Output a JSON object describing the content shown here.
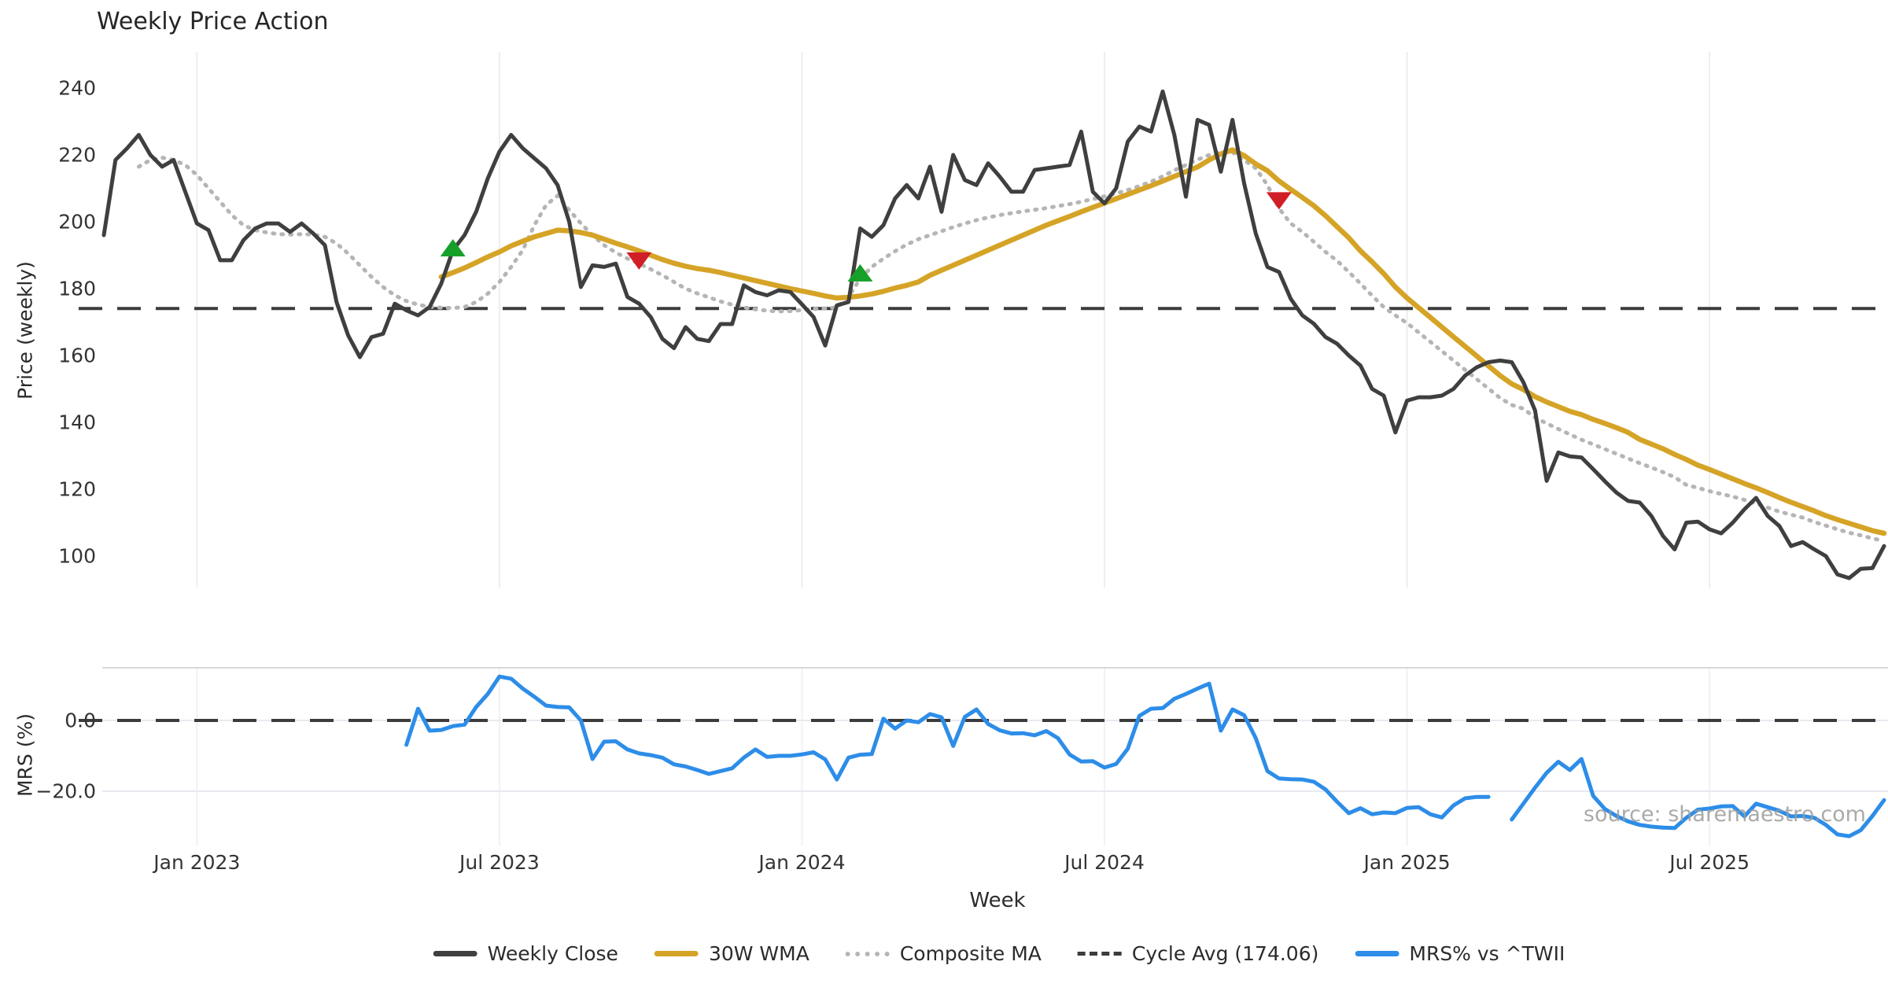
{
  "chart": {
    "title": "Weekly Price Action",
    "watermark": "source: sharemaestro.com",
    "xlabel": "Week",
    "top_panel": {
      "ylabel": "Price (weekly)",
      "yticks": [
        240,
        220,
        200,
        180,
        160,
        140,
        120,
        100
      ],
      "ylim": [
        90.5,
        245.5
      ]
    },
    "bottom_panel": {
      "ylabel": "MRS (%)",
      "yticks": [
        {
          "v": 0,
          "label": "0.0"
        },
        {
          "v": -20,
          "label": "−20.0"
        }
      ],
      "ylim": [
        -35.5,
        15.0
      ]
    },
    "xticks": [
      {
        "week": 8,
        "label": "Jan 2023"
      },
      {
        "week": 34,
        "label": "Jul 2023"
      },
      {
        "week": 60,
        "label": "Jan 2024"
      },
      {
        "week": 86,
        "label": "Jul 2024"
      },
      {
        "week": 112,
        "label": "Jan 2025"
      },
      {
        "week": 138,
        "label": "Jul 2025"
      }
    ],
    "legend": {
      "items": [
        {
          "label": "Weekly Close",
          "color": "#3f3f3f",
          "style": "solid"
        },
        {
          "label": "30W WMA",
          "color": "#d5a326",
          "style": "solid"
        },
        {
          "label": "Composite MA",
          "color": "#b5b5b5",
          "style": "dotted"
        },
        {
          "label": "Cycle Avg (174.06)",
          "color": "#3c3c3c",
          "style": "dashed"
        },
        {
          "label": "MRS% vs ^TWII",
          "color": "#2d8de8",
          "style": "solid"
        }
      ]
    },
    "colors": {
      "grid": "#ededf2",
      "panel_border": "#d8d8dc",
      "close": "#3f3f3f",
      "wma": "#d5a326",
      "composite": "#b5b5b5",
      "cycle": "#3c3c3c",
      "mrs": "#2d8de8",
      "buy": "#16a02a",
      "sell": "#d01f26"
    }
  },
  "chart_data": {
    "type": "line",
    "x_unit": "week_index",
    "n_weeks": 154,
    "x_tick_weeks": [
      8,
      34,
      60,
      86,
      112,
      138
    ],
    "x_tick_labels": [
      "Jan 2023",
      "Jul 2023",
      "Jan 2024",
      "Jul 2024",
      "Jan 2025",
      "Jul 2025"
    ],
    "cycle_avg": 174.06,
    "series": [
      {
        "name": "Weekly Close",
        "panel": "top",
        "values": [
          196,
          218.5,
          222,
          226,
          220,
          216.5,
          218.5,
          209,
          199.5,
          197.5,
          188.5,
          188.5,
          194.5,
          198,
          199.5,
          199.5,
          197,
          199.5,
          196.5,
          193,
          176,
          166,
          159.5,
          165.5,
          166.5,
          175.5,
          173.5,
          172,
          174.5,
          181.5,
          191.5,
          196,
          203,
          213,
          221,
          226,
          222,
          219,
          216,
          211,
          200,
          180.5,
          187,
          186.5,
          187.5,
          177.5,
          175.5,
          171.5,
          165,
          162.2,
          168.5,
          165,
          164.3,
          169.4,
          169.4,
          181,
          179,
          178,
          179.5,
          179,
          175.3,
          171.5,
          163,
          175,
          176,
          198,
          195.5,
          199,
          207,
          211,
          207,
          216.5,
          203,
          220,
          212.5,
          211,
          217.5,
          213.5,
          209,
          209,
          215.5,
          216,
          216.5,
          217,
          227,
          209,
          205.5,
          210,
          224,
          228.5,
          227,
          239,
          226,
          207.5,
          230.5,
          229,
          215,
          230.5,
          211.5,
          196.5,
          186.5,
          185,
          177,
          172,
          169.5,
          165.5,
          163.5,
          160,
          157,
          150,
          148,
          137,
          146.5,
          147.5,
          147.5,
          148,
          150,
          154,
          156.5,
          158,
          158.5,
          158,
          152,
          143.6,
          122.5,
          131,
          129.8,
          129.5,
          126,
          122.4,
          119,
          116.5,
          116,
          112,
          106,
          102,
          110,
          110.3,
          108,
          106.8,
          110,
          114,
          117.4,
          112,
          109,
          103,
          104.2,
          102,
          100,
          94.5,
          93.4,
          96.2,
          96.4,
          103
        ]
      },
      {
        "name": "30W WMA",
        "panel": "top",
        "values": [
          null,
          null,
          null,
          null,
          null,
          null,
          null,
          null,
          null,
          null,
          null,
          null,
          null,
          null,
          null,
          null,
          null,
          null,
          null,
          null,
          null,
          null,
          null,
          null,
          null,
          null,
          null,
          null,
          null,
          183.5,
          184.8,
          186.2,
          187.8,
          189.5,
          191,
          192.8,
          194.2,
          195.5,
          196.5,
          197.5,
          197.3,
          196.8,
          196,
          194.8,
          193.6,
          192.5,
          191.3,
          190,
          188.7,
          187.6,
          186.7,
          186,
          185.5,
          184.8,
          184,
          183.2,
          182.4,
          181.6,
          180.8,
          180,
          179.3,
          178.6,
          177.8,
          177.2,
          177.4,
          177.8,
          178.4,
          179.2,
          180.2,
          181,
          182,
          184,
          185.5,
          187,
          188.5,
          190,
          191.5,
          193,
          194.5,
          196,
          197.5,
          199,
          200.3,
          201.6,
          203,
          204.3,
          205.6,
          206.9,
          208.2,
          209.5,
          210.8,
          212.2,
          213.6,
          215,
          216.4,
          218.5,
          220.3,
          221.5,
          219.8,
          217.3,
          215.3,
          212.2,
          209.7,
          207.3,
          204.8,
          201.8,
          198.5,
          195.2,
          191.3,
          188,
          184.5,
          180.5,
          177.2,
          174.3,
          171.4,
          168.5,
          165.6,
          162.7,
          159.8,
          156.9,
          154,
          151.5,
          149.8,
          147.7,
          146.1,
          144.7,
          143.3,
          142.3,
          140.9,
          139.7,
          138.4,
          137,
          134.9,
          133.5,
          132.1,
          130.4,
          128.9,
          127.2,
          125.9,
          124.5,
          123.1,
          121.7,
          120.4,
          119,
          117.5,
          116.1,
          114.8,
          113.5,
          112.1,
          110.9,
          109.8,
          108.7,
          107.6,
          106.8
        ]
      },
      {
        "name": "Composite MA",
        "panel": "top",
        "values": [
          null,
          null,
          null,
          216.5,
          218.5,
          219.2,
          218.5,
          217,
          214,
          210,
          206,
          202,
          199,
          197.5,
          196.8,
          196.3,
          196.2,
          196.3,
          196.2,
          195.5,
          193.5,
          190.5,
          187,
          183.5,
          180.5,
          178,
          176.3,
          175.2,
          174.6,
          174.3,
          174.2,
          174.5,
          176,
          178.5,
          182,
          186.5,
          191.5,
          199,
          205,
          207.8,
          203.5,
          199.5,
          196,
          193,
          190.8,
          189,
          187.5,
          185.8,
          184,
          182,
          180,
          178.6,
          177.4,
          176.2,
          175.2,
          174.4,
          173.8,
          173.4,
          173.2,
          173.3,
          173.6,
          173.9,
          174.1,
          174.4,
          177.5,
          183,
          186.5,
          189,
          191.2,
          193.2,
          194.8,
          196,
          197.2,
          198.4,
          199.5,
          200.5,
          201.3,
          202,
          202.6,
          203.1,
          203.6,
          204.1,
          204.7,
          205.3,
          206,
          206.8,
          207.6,
          208.5,
          209.5,
          210.7,
          212,
          213.6,
          215.4,
          217,
          218.6,
          220,
          221,
          220.8,
          218.5,
          216,
          211,
          204,
          199.5,
          197,
          194,
          191,
          188.3,
          185,
          181.5,
          177.9,
          174.5,
          172,
          169.7,
          166.9,
          164.1,
          161.3,
          158.5,
          155.7,
          152.9,
          150.1,
          147.3,
          145.2,
          144.1,
          141.4,
          139.7,
          138,
          136.4,
          134.8,
          133.4,
          132,
          130.6,
          129.2,
          127.8,
          126.5,
          125.1,
          123.6,
          121.3,
          120.4,
          119.4,
          118.6,
          117.8,
          116.8,
          115.7,
          114.5,
          113.3,
          112.4,
          111.5,
          110.2,
          109.1,
          108,
          107,
          106.2,
          105.3,
          104.5
        ]
      },
      {
        "name": "Cycle Avg (174.06)",
        "panel": "top",
        "constant": 174.06
      },
      {
        "name": "MRS% vs ^TWII",
        "panel": "bottom",
        "values": [
          null,
          null,
          null,
          null,
          null,
          null,
          null,
          null,
          null,
          null,
          null,
          null,
          null,
          null,
          null,
          null,
          null,
          null,
          null,
          null,
          null,
          null,
          null,
          null,
          null,
          null,
          -6.9,
          3.3,
          -2.9,
          -2.7,
          -1.6,
          -1.2,
          3.8,
          7.5,
          12.4,
          11.8,
          9,
          6.7,
          4.2,
          3.8,
          3.7,
          0,
          -10.9,
          -6,
          -5.9,
          -8.2,
          -9.3,
          -9.8,
          -10.5,
          -12.4,
          -13,
          -14,
          -15.1,
          -14.3,
          -13.5,
          -10.5,
          -8.2,
          -10.3,
          -10,
          -10,
          -9.6,
          -9,
          -11,
          -16.7,
          -10.5,
          -9.7,
          -9.5,
          0.5,
          -2.3,
          0,
          -0.5,
          1.8,
          0.9,
          -7.2,
          1,
          3.1,
          -1,
          -2.8,
          -3.7,
          -3.6,
          -4.2,
          -3,
          -5,
          -9.6,
          -11.6,
          -11.5,
          -13.3,
          -12.3,
          -8,
          1.3,
          3.3,
          3.5,
          6.1,
          7.5,
          9,
          10.4,
          -2.9,
          3.1,
          1.5,
          -5,
          -14.3,
          -16.4,
          -16.6,
          -16.7,
          -17.3,
          -19.5,
          -23,
          -26.2,
          -24.8,
          -26.5,
          -26,
          -26.2,
          -24.7,
          -24.5,
          -26.5,
          -27.4,
          -24,
          -22,
          -21.6,
          -21.6,
          null,
          -28,
          -23.5,
          -19,
          -14.8,
          -11.7,
          -14,
          -10.9,
          -21.3,
          -25,
          -27,
          -28.5,
          -29.5,
          -30,
          -30.3,
          -30.4,
          -27.5,
          -25.2,
          -24.9,
          -24.3,
          -24.2,
          -27.1,
          -23.5,
          -24.5,
          -25.5,
          -27.1,
          -27,
          -27.5,
          -29.5,
          -32.2,
          -32.7,
          -31,
          -27,
          -22.5
        ]
      }
    ],
    "markers": {
      "buy": [
        {
          "week": 30,
          "price": 192
        },
        {
          "week": 65,
          "price": 184.5
        }
      ],
      "sell": [
        {
          "week": 46,
          "price": 188.5
        },
        {
          "week": 101,
          "price": 206.5
        }
      ]
    }
  }
}
